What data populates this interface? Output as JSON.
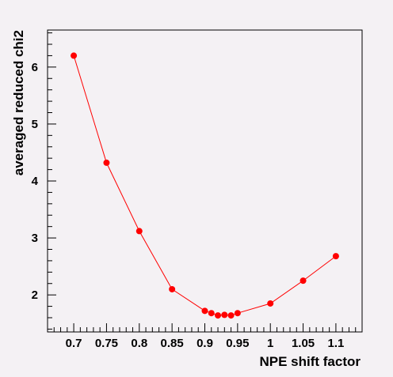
{
  "chart_data": {
    "type": "line",
    "title": "",
    "xlabel": "NPE shift factor",
    "ylabel": "averaged reduced chi2",
    "xlim": [
      0.66,
      1.14
    ],
    "ylim": [
      1.35,
      6.65
    ],
    "xticks": [
      0.7,
      0.75,
      0.8,
      0.85,
      0.9,
      0.95,
      1,
      1.05,
      1.1
    ],
    "xtick_labels": [
      "0.7",
      "0.75",
      "0.8",
      "0.85",
      "0.9",
      "0.95",
      "1",
      "1.05",
      "1.1"
    ],
    "yticks": [
      2,
      3,
      4,
      5,
      6
    ],
    "ytick_labels": [
      "2",
      "3",
      "4",
      "5",
      "6"
    ],
    "grid": false,
    "legend": "none",
    "series": [
      {
        "color": "#ff0000",
        "marker": "circle",
        "x": [
          0.7,
          0.75,
          0.8,
          0.85,
          0.9,
          0.91,
          0.92,
          0.93,
          0.94,
          0.95,
          1.0,
          1.05,
          1.1
        ],
        "y": [
          6.2,
          4.32,
          3.12,
          2.1,
          1.72,
          1.68,
          1.64,
          1.65,
          1.64,
          1.68,
          1.85,
          2.25,
          2.68
        ]
      }
    ]
  }
}
